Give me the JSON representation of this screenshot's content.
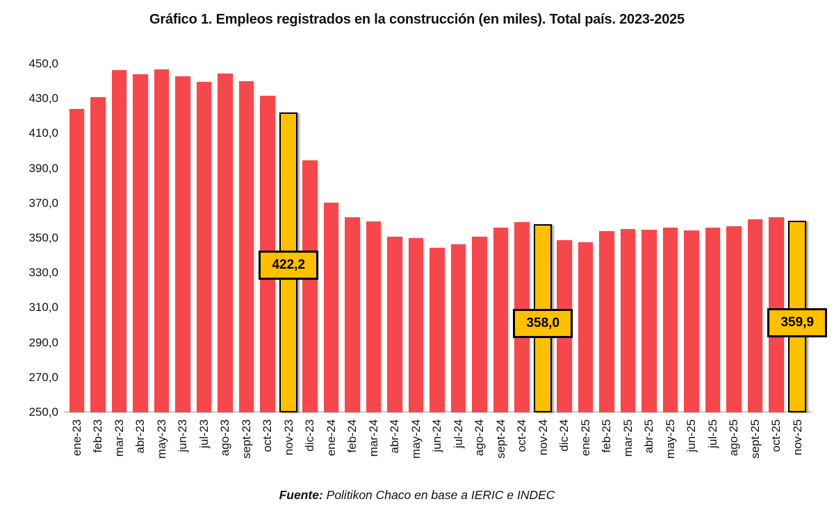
{
  "page": {
    "title": "Gráfico 1. Empleos registrados en la construcción (en miles). Total país. 2023-2025",
    "source_bold": "Fuente:",
    "source_rest": "Politikon Chaco en base a IERIC e INDEC"
  },
  "chart_data": {
    "type": "bar",
    "title": "Gráfico 1. Empleos registrados en la construcción (en miles). Total país. 2023-2025",
    "source": "Fuente: Politikon Chaco en base a IERIC e INDEC",
    "xlabel": "",
    "ylabel": "",
    "ylim": [
      250,
      450
    ],
    "ytick_step": 20,
    "ytick_labels": [
      "450,0",
      "430,0",
      "410,0",
      "390,0",
      "370,0",
      "350,0",
      "330,0",
      "310,0",
      "290,0",
      "270,0",
      "250,0"
    ],
    "grid": false,
    "legend": "none",
    "categories": [
      "ene-23",
      "feb-23",
      "mar-23",
      "abr-23",
      "may-23",
      "jun-23",
      "jul-23",
      "ago-23",
      "sept-23",
      "oct-23",
      "nov-23",
      "dic-23",
      "ene-24",
      "feb-24",
      "mar-24",
      "abr-24",
      "may-24",
      "jun-24",
      "jul-24",
      "ago-24",
      "sept-24",
      "oct-24",
      "nov-24",
      "dic-24",
      "ene-25",
      "feb-25",
      "mar-25",
      "abr-25",
      "may-25",
      "jun-25",
      "jul-25",
      "ago-25",
      "sept-25",
      "oct-25",
      "nov-25"
    ],
    "values": [
      424.0,
      431.0,
      446.5,
      444.0,
      447.0,
      443.0,
      439.5,
      444.5,
      440.0,
      431.5,
      422.2,
      394.5,
      370.5,
      362.0,
      359.5,
      351.0,
      350.2,
      344.3,
      346.3,
      351.0,
      355.8,
      359.3,
      358.0,
      348.7,
      347.6,
      353.8,
      355.2,
      354.9,
      355.8,
      354.3,
      355.9,
      356.6,
      360.9,
      362.1,
      359.9
    ],
    "highlights": [
      {
        "category": "nov-23",
        "index": 10,
        "value": 422.2,
        "label": "422,2"
      },
      {
        "category": "nov-24",
        "index": 22,
        "value": 358.0,
        "label": "358,0"
      },
      {
        "category": "nov-25",
        "index": 34,
        "value": 359.9,
        "label": "359,9"
      }
    ],
    "colors": {
      "bar": "#f5484c",
      "highlight_bar": "#ffc000",
      "highlight_border": "#000000",
      "axis_line": "#d9d9d9",
      "text": "#111111",
      "background": "#ffffff"
    }
  }
}
